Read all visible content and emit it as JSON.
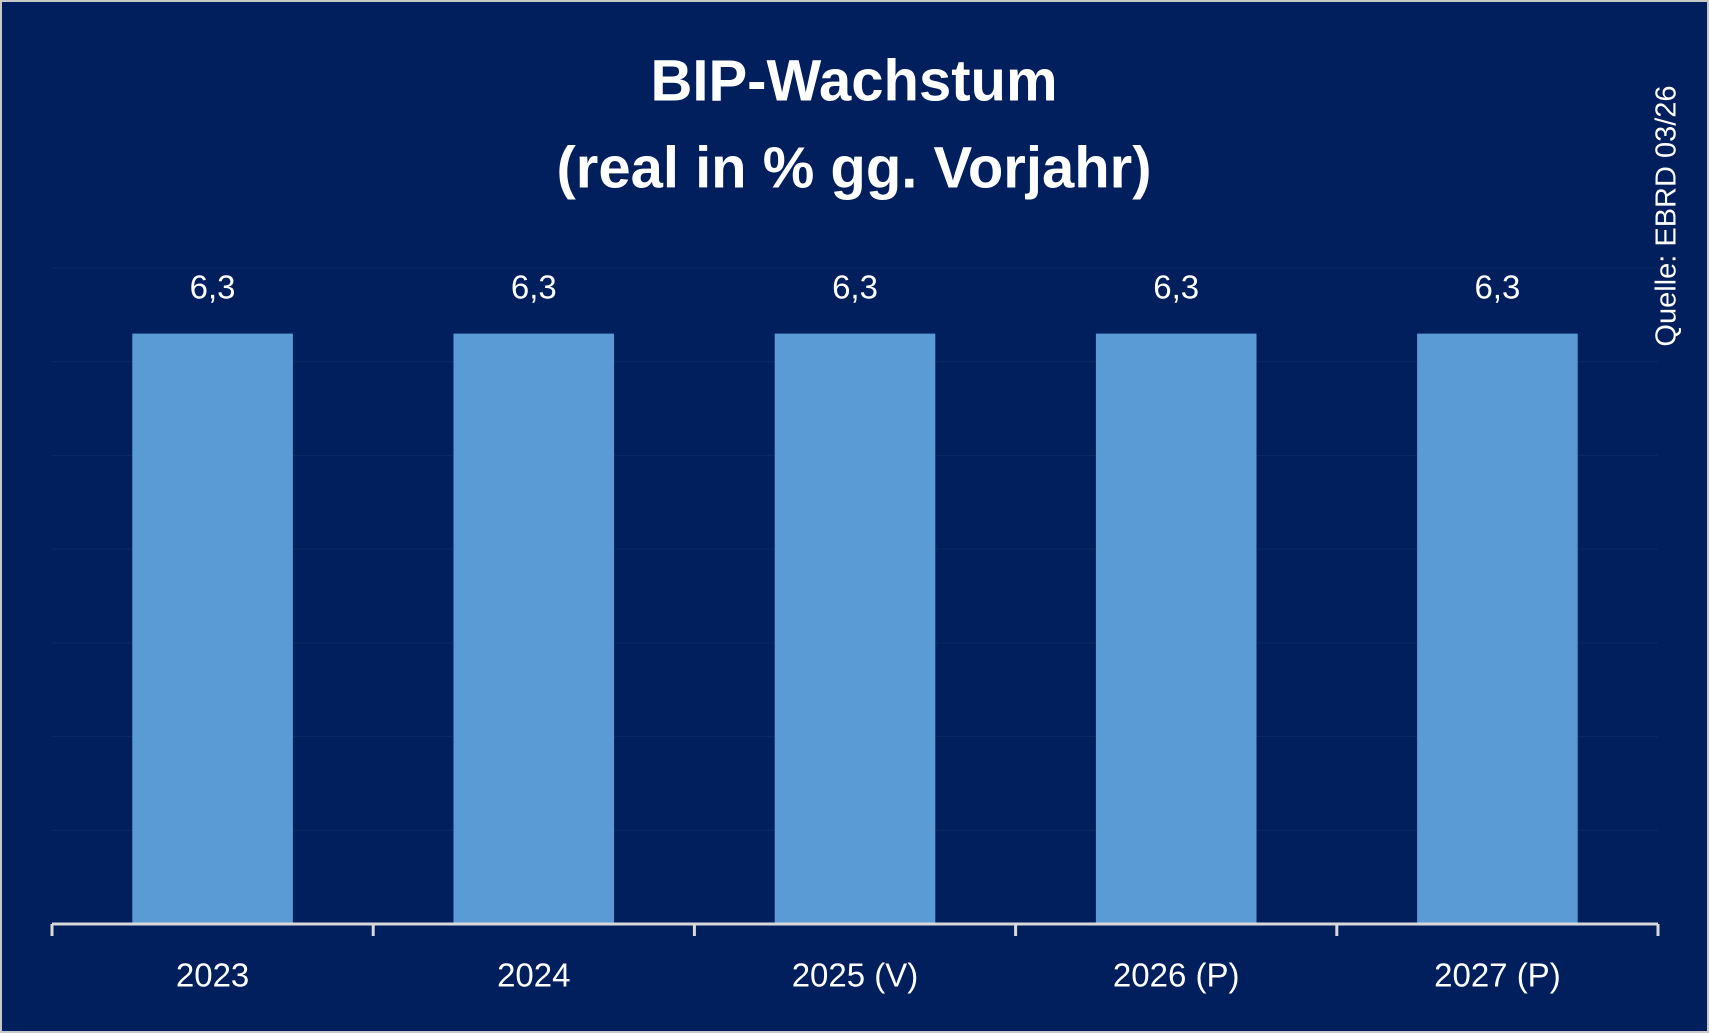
{
  "chart_data": {
    "type": "bar",
    "title": "BIP-Wachstum",
    "subtitle": "(real in % gg. Vorjahr)",
    "source": "Quelle: EBRD 03/26",
    "categories": [
      "2023",
      "2024",
      "2025 (V)",
      "2026 (P)",
      "2027 (P)"
    ],
    "values": [
      6.3,
      6.3,
      6.3,
      6.3,
      6.3
    ],
    "value_labels": [
      "6,3",
      "6,3",
      "6,3",
      "6,3",
      "6,3"
    ],
    "color": "#5b9bd5",
    "background": "#001f5c",
    "ylim": [
      0,
      7
    ],
    "yticks": [
      0,
      1,
      2,
      3,
      4,
      5,
      6,
      7
    ],
    "grid": true
  }
}
